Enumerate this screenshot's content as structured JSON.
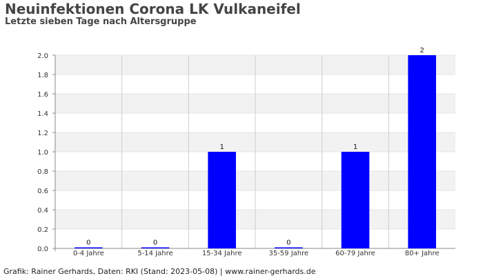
{
  "header": {
    "title": "Neuinfektionen Corona LK Vulkaneifel",
    "subtitle": "Letzte sieben Tage nach Altersgruppe"
  },
  "footer": {
    "credit": "Grafik: Rainer Gerhards, Daten: RKI (Stand: 2023-05-08) | www.rainer-gerhards.de"
  },
  "chart_data": {
    "type": "bar",
    "title": "Neuinfektionen Corona LK Vulkaneifel",
    "subtitle": "Letzte sieben Tage nach Altersgruppe",
    "categories": [
      "0-4 Jahre",
      "5-14 Jahre",
      "15-34 Jahre",
      "35-59 Jahre",
      "60-79 Jahre",
      "80+ Jahre"
    ],
    "values": [
      0,
      0,
      1,
      0,
      1,
      2
    ],
    "data_labels": [
      "0",
      "0",
      "1",
      "0",
      "1",
      "2"
    ],
    "ylim": [
      0,
      2.0
    ],
    "yticks": [
      "0.0",
      "0.2",
      "0.4",
      "0.6",
      "0.8",
      "1.0",
      "1.2",
      "1.4",
      "1.6",
      "1.8",
      "2.0"
    ],
    "grid": true,
    "legend": "none",
    "colors": {
      "bar": "#0000ff",
      "band": "#f2f2f2",
      "grid": "#cccccc",
      "axis": "#888888",
      "label": "#333333"
    }
  }
}
